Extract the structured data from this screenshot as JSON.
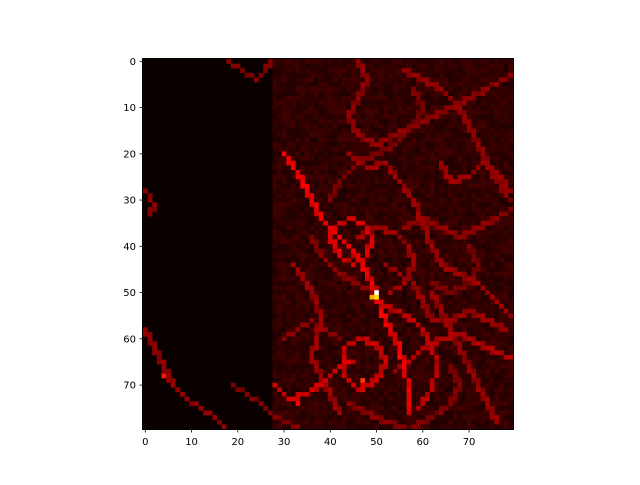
{
  "chart_data": {
    "type": "heatmap",
    "title": "",
    "xlabel": "",
    "ylabel": "",
    "grid_size": [
      80,
      80
    ],
    "x_range": [
      0,
      79
    ],
    "y_range": [
      0,
      79
    ],
    "y_inverted": true,
    "x_ticks": [
      "0",
      "10",
      "20",
      "30",
      "40",
      "50",
      "60",
      "70"
    ],
    "y_ticks": [
      "0",
      "10",
      "20",
      "30",
      "40",
      "50",
      "60",
      "70"
    ],
    "colormap": "hot",
    "colors": {
      "low": "#0b0000",
      "mid": "#c00000",
      "high": "#ffffff"
    },
    "max_point": {
      "col": 50,
      "row": 50
    },
    "hot_cells": [
      {
        "col": 49,
        "row": 51,
        "value": 0.62
      },
      {
        "col": 47,
        "row": 69,
        "value": 0.45
      },
      {
        "col": 4,
        "row": 68,
        "value": 0.4
      },
      {
        "col": 55,
        "row": 64,
        "value": 0.38
      },
      {
        "col": 33,
        "row": 74,
        "value": 0.36
      },
      {
        "col": 51,
        "row": 55,
        "value": 0.35
      }
    ],
    "paths": [
      {
        "value": 0.3,
        "points": [
          [
            30,
            20
          ],
          [
            33,
            24
          ],
          [
            36,
            30
          ],
          [
            38,
            34
          ],
          [
            41,
            37
          ],
          [
            44,
            40
          ],
          [
            47,
            44
          ],
          [
            49,
            48
          ],
          [
            50,
            50
          ],
          [
            51,
            54
          ],
          [
            53,
            58
          ],
          [
            55,
            62
          ],
          [
            56,
            66
          ],
          [
            57,
            71
          ],
          [
            57,
            76
          ]
        ]
      },
      {
        "value": 0.28,
        "points": [
          [
            41,
            36
          ],
          [
            44,
            34
          ],
          [
            47,
            35
          ],
          [
            49,
            38
          ],
          [
            48,
            42
          ],
          [
            45,
            44
          ],
          [
            42,
            42
          ],
          [
            40,
            38
          ],
          [
            41,
            36
          ]
        ]
      },
      {
        "value": 0.26,
        "points": [
          [
            43,
            62
          ],
          [
            46,
            60
          ],
          [
            50,
            61
          ],
          [
            52,
            65
          ],
          [
            50,
            69
          ],
          [
            46,
            71
          ],
          [
            43,
            68
          ],
          [
            43,
            62
          ]
        ]
      },
      {
        "value": 0.27,
        "points": [
          [
            28,
            70
          ],
          [
            31,
            73
          ],
          [
            35,
            72
          ],
          [
            39,
            69
          ],
          [
            42,
            66
          ],
          [
            45,
            65
          ]
        ]
      },
      {
        "value": 0.24,
        "points": [
          [
            51,
            53
          ],
          [
            55,
            54
          ],
          [
            59,
            57
          ],
          [
            62,
            61
          ],
          [
            63,
            66
          ],
          [
            62,
            71
          ],
          [
            59,
            75
          ]
        ]
      },
      {
        "value": 0.22,
        "points": [
          [
            54,
            67
          ],
          [
            57,
            65
          ],
          [
            60,
            62
          ],
          [
            64,
            60
          ],
          [
            68,
            59
          ],
          [
            72,
            61
          ],
          [
            76,
            63
          ],
          [
            79,
            64
          ]
        ]
      },
      {
        "value": 0.2,
        "points": [
          [
            44,
            20
          ],
          [
            48,
            23
          ],
          [
            52,
            22
          ],
          [
            55,
            26
          ],
          [
            58,
            30
          ],
          [
            60,
            35
          ],
          [
            62,
            40
          ],
          [
            64,
            44
          ],
          [
            68,
            46
          ],
          [
            72,
            48
          ],
          [
            76,
            52
          ],
          [
            79,
            55
          ]
        ]
      },
      {
        "value": 0.18,
        "points": [
          [
            46,
            0
          ],
          [
            48,
            4
          ],
          [
            46,
            8
          ],
          [
            44,
            12
          ],
          [
            46,
            16
          ],
          [
            50,
            18
          ],
          [
            54,
            16
          ],
          [
            58,
            14
          ],
          [
            62,
            12
          ],
          [
            66,
            10
          ],
          [
            70,
            8
          ],
          [
            74,
            6
          ],
          [
            79,
            3
          ]
        ]
      },
      {
        "value": 0.18,
        "points": [
          [
            56,
            2
          ],
          [
            60,
            4
          ],
          [
            64,
            6
          ],
          [
            68,
            10
          ],
          [
            70,
            14
          ],
          [
            72,
            18
          ],
          [
            74,
            22
          ],
          [
            76,
            26
          ],
          [
            79,
            30
          ]
        ]
      },
      {
        "value": 0.2,
        "points": [
          [
            64,
            22
          ],
          [
            66,
            26
          ],
          [
            70,
            25
          ],
          [
            73,
            22
          ],
          [
            76,
            24
          ],
          [
            79,
            28
          ]
        ]
      },
      {
        "value": 0.16,
        "points": [
          [
            18,
            0
          ],
          [
            21,
            2
          ],
          [
            24,
            4
          ],
          [
            26,
            2
          ],
          [
            27,
            0
          ]
        ]
      },
      {
        "value": 0.17,
        "points": [
          [
            0,
            28
          ],
          [
            2,
            31
          ],
          [
            1,
            33
          ]
        ]
      },
      {
        "value": 0.18,
        "points": [
          [
            0,
            58
          ],
          [
            2,
            62
          ],
          [
            4,
            66
          ],
          [
            6,
            70
          ],
          [
            9,
            73
          ],
          [
            12,
            75
          ],
          [
            15,
            77
          ],
          [
            17,
            79
          ]
        ]
      },
      {
        "value": 0.16,
        "points": [
          [
            19,
            70
          ],
          [
            22,
            72
          ],
          [
            25,
            74
          ],
          [
            27,
            76
          ],
          [
            30,
            78
          ],
          [
            33,
            79
          ]
        ]
      },
      {
        "value": 0.2,
        "points": [
          [
            32,
            44
          ],
          [
            35,
            48
          ],
          [
            37,
            52
          ],
          [
            38,
            56
          ],
          [
            37,
            60
          ],
          [
            36,
            64
          ],
          [
            38,
            68
          ],
          [
            40,
            72
          ],
          [
            42,
            76
          ]
        ]
      },
      {
        "value": 0.19,
        "points": [
          [
            52,
            44
          ],
          [
            55,
            46
          ],
          [
            58,
            48
          ],
          [
            60,
            52
          ],
          [
            62,
            56
          ],
          [
            66,
            56
          ],
          [
            70,
            54
          ],
          [
            74,
            56
          ],
          [
            78,
            58
          ]
        ]
      },
      {
        "value": 0.19,
        "points": [
          [
            62,
            50
          ],
          [
            64,
            54
          ],
          [
            66,
            58
          ],
          [
            68,
            62
          ],
          [
            70,
            66
          ],
          [
            72,
            70
          ],
          [
            74,
            74
          ],
          [
            76,
            78
          ]
        ]
      },
      {
        "value": 0.17,
        "points": [
          [
            36,
            38
          ],
          [
            38,
            42
          ],
          [
            42,
            46
          ],
          [
            46,
            48
          ],
          [
            49,
            50
          ]
        ]
      },
      {
        "value": 0.2,
        "points": [
          [
            46,
            38
          ],
          [
            50,
            36
          ],
          [
            54,
            37
          ],
          [
            57,
            40
          ],
          [
            58,
            44
          ],
          [
            56,
            48
          ],
          [
            53,
            50
          ]
        ]
      },
      {
        "value": 0.18,
        "points": [
          [
            56,
            36
          ],
          [
            60,
            34
          ],
          [
            64,
            36
          ],
          [
            68,
            38
          ],
          [
            72,
            36
          ],
          [
            76,
            34
          ],
          [
            79,
            32
          ]
        ]
      },
      {
        "value": 0.17,
        "points": [
          [
            30,
            60
          ],
          [
            33,
            58
          ],
          [
            36,
            56
          ],
          [
            39,
            58
          ],
          [
            42,
            60
          ]
        ]
      },
      {
        "value": 0.17,
        "points": [
          [
            44,
            74
          ],
          [
            48,
            76
          ],
          [
            52,
            78
          ],
          [
            56,
            79
          ]
        ]
      },
      {
        "value": 0.15,
        "points": [
          [
            58,
            6
          ],
          [
            60,
            10
          ],
          [
            58,
            14
          ],
          [
            54,
            18
          ],
          [
            50,
            20
          ],
          [
            46,
            22
          ],
          [
            42,
            26
          ],
          [
            40,
            30
          ]
        ]
      },
      {
        "value": 0.16,
        "points": [
          [
            66,
            66
          ],
          [
            68,
            70
          ],
          [
            66,
            74
          ],
          [
            62,
            77
          ],
          [
            58,
            79
          ]
        ]
      },
      {
        "value": 0.15,
        "points": [
          [
            70,
            40
          ],
          [
            72,
            44
          ],
          [
            70,
            48
          ],
          [
            66,
            50
          ],
          [
            62,
            48
          ]
        ]
      }
    ]
  }
}
